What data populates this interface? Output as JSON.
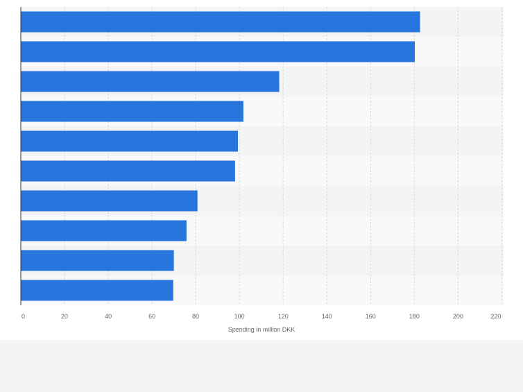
{
  "chart_data": {
    "type": "bar",
    "orientation": "horizontal",
    "categories": [
      "",
      "",
      "",
      "",
      "",
      "",
      "",
      "",
      "",
      ""
    ],
    "values": [
      182.6,
      180.2,
      118.2,
      101.8,
      99.3,
      98.0,
      80.8,
      75.8,
      70.0,
      69.7
    ],
    "title": "",
    "xlabel": "Spending in million DKK",
    "ylabel": "",
    "xlim": [
      0,
      220
    ],
    "xticks": [
      "0",
      "20",
      "40",
      "60",
      "80",
      "100",
      "120",
      "140",
      "160",
      "180",
      "200",
      "220"
    ],
    "grid": true,
    "legend": "none",
    "colors": {
      "bar": "#2775dd",
      "band_light": "#f9f9f9",
      "band_dark": "#f4f4f4",
      "background": "#f4f4f4",
      "plot_background": "#ffffff",
      "gridline": "#d9d9d9",
      "axis": "#333333",
      "tick_label": "#666666"
    }
  }
}
